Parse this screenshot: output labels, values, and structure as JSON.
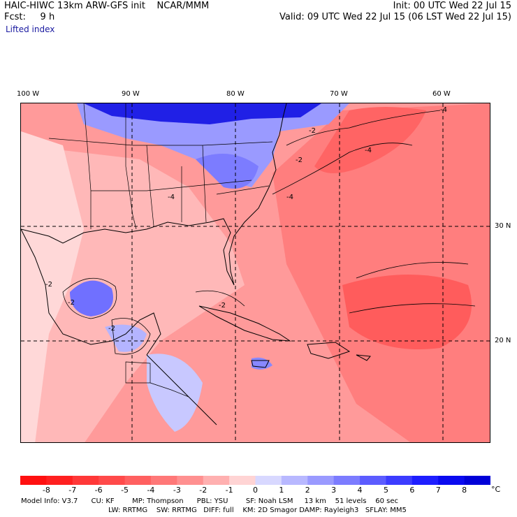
{
  "header": {
    "model_title": "HAIC-HIWC 13km ARW-GFS init",
    "institution": "NCAR/MMM",
    "init_time": "Init: 00 UTC Wed 22 Jul 15",
    "fcst_label": "Fcst:",
    "fcst_hours": "9 h",
    "valid_time": "Valid: 09 UTC Wed 22 Jul 15 (06 LST Wed 22 Jul 15)",
    "field_name": "Lifted index"
  },
  "map": {
    "lon_labels": [
      "100 W",
      "90 W",
      "80 W",
      "70 W",
      "60 W"
    ],
    "lat_labels": [
      "30 N",
      "20 N"
    ],
    "contour_labels": [
      "-2",
      "-4",
      "-2",
      "-4",
      "-4",
      "-2",
      "-2",
      "-2",
      "-2",
      "-4"
    ],
    "fill_colors": {
      "neg8": "#ff1a1a",
      "neg7": "#ff3030",
      "neg6": "#ff4545",
      "neg5": "#ff5e5e",
      "neg4": "#ff7a7a",
      "neg3": "#ff9696",
      "neg2": "#ffb4b4",
      "neg1": "#ffd6d6",
      "zero": "#ffffff",
      "pos1": "#d4d4ff",
      "pos2": "#b4b4ff",
      "pos3": "#9090ff",
      "pos4": "#6c6cff",
      "pos5": "#4a4aff",
      "pos6": "#2a2aff",
      "pos7": "#1010f0",
      "pos8": "#0000d8"
    }
  },
  "colorbar": {
    "labels": [
      "-8",
      "-7",
      "-6",
      "-5",
      "-4",
      "-3",
      "-2",
      "-1",
      "0",
      "1",
      "2",
      "3",
      "4",
      "5",
      "6",
      "7",
      "8"
    ],
    "colors": [
      "#ff1010",
      "#ff2020",
      "#ff3838",
      "#ff4a4a",
      "#ff6060",
      "#ff7878",
      "#ff9090",
      "#ffb0b0",
      "#ffd4d4",
      "#d8d8ff",
      "#b8b8ff",
      "#9a9aff",
      "#7c7cff",
      "#5c5cff",
      "#3c3cff",
      "#1e1eff",
      "#0a0af0",
      "#0000d8"
    ],
    "unit": "°C"
  },
  "footer": {
    "line1": "Model Info: V3.7      CU: KF        MP: Thompson      PBL: YSU        SF: Noah LSM     13 km    51 levels    60 sec",
    "line2": "LW: RRTMG    SW: RRTMG   DIFF: full    KM: 2D Smagor DAMP: Rayleigh3   SFLAY: MM5"
  }
}
